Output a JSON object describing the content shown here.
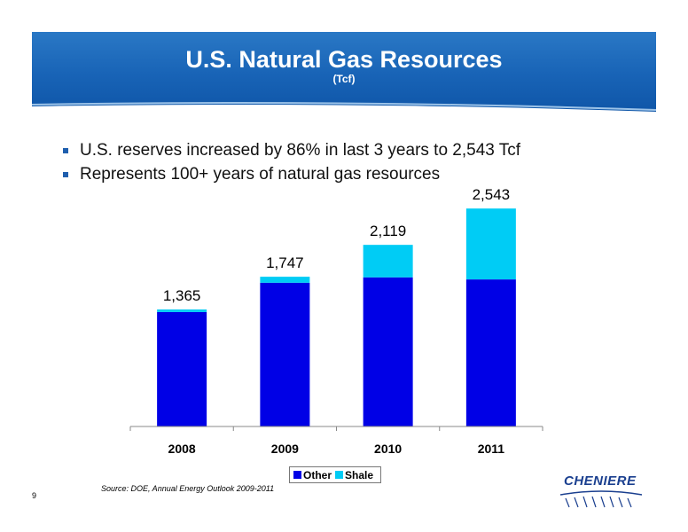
{
  "slide": {
    "title": "U.S. Natural Gas Resources",
    "subtitle": "(Tcf)",
    "bullets": [
      "U.S. reserves increased by 86% in last 3 years to 2,543 Tcf",
      "Represents 100+ years of natural gas resources"
    ],
    "source": "Source: DOE, Annual Energy Outlook 2009-2011",
    "page_number": "9",
    "logo_text": "CHENIERE"
  },
  "chart_data": {
    "type": "bar",
    "stacked": true,
    "categories": [
      "2008",
      "2009",
      "2010",
      "2011"
    ],
    "series": [
      {
        "name": "Other",
        "values": [
          1335,
          1677,
          1740,
          1716
        ],
        "color": "#0000e6"
      },
      {
        "name": "Shale",
        "values": [
          30,
          70,
          379,
          827
        ],
        "color": "#00ccf5"
      }
    ],
    "totals": [
      "1,365",
      "1,747",
      "2,119",
      "2,543"
    ],
    "ylim": [
      0,
      2700
    ],
    "grid": false,
    "legend_position": "bottom"
  }
}
